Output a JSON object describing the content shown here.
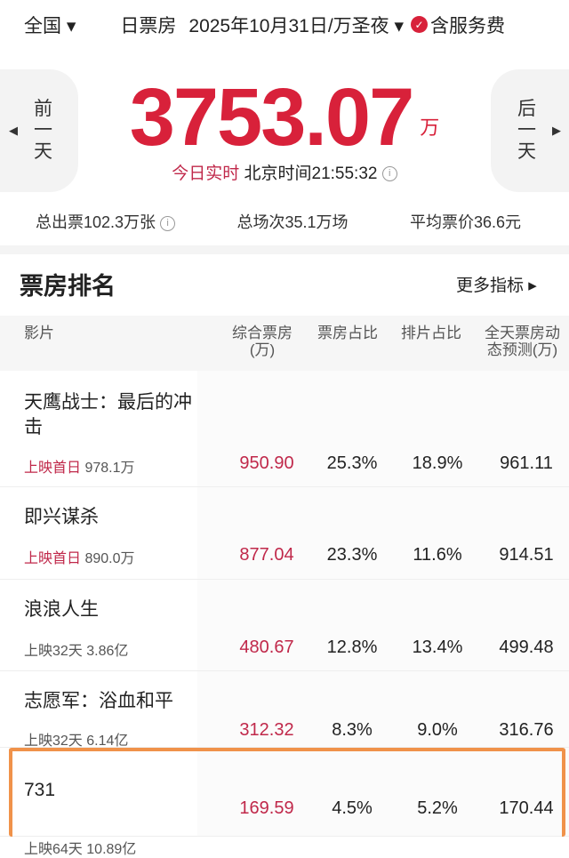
{
  "header": {
    "region": "全国 ▾",
    "title": "日票房",
    "date": "2025年10月31日/万圣夜 ▾",
    "service_fee": "含服务费"
  },
  "nav": {
    "prev": [
      "前",
      "一",
      "天"
    ],
    "next": [
      "后",
      "一",
      "天"
    ]
  },
  "total": {
    "value": "3753.07",
    "unit": "万",
    "realtime_label": "今日实时",
    "time": "北京时间21:55:32"
  },
  "stats": {
    "tickets": "总出票102.3万张",
    "shows": "总场次35.1万场",
    "avg_price": "平均票价36.6元"
  },
  "ranking": {
    "title": "票房排名",
    "more": "更多指标 ▸",
    "columns": [
      "影片",
      "综合票房\n(万)",
      "票房占比",
      "排片占比",
      "全天票房动\n态预测(万)"
    ],
    "rows": [
      {
        "name": "天鹰战士：最后的冲击",
        "tag": "上映首日",
        "total": "978.1万",
        "box": "950.90",
        "box_share": "25.3%",
        "show_share": "18.9%",
        "forecast": "961.11"
      },
      {
        "name": "即兴谋杀",
        "tag": "上映首日",
        "total": "890.0万",
        "box": "877.04",
        "box_share": "23.3%",
        "show_share": "11.6%",
        "forecast": "914.51"
      },
      {
        "name": "浪浪人生",
        "tag": "上映32天",
        "total": "3.86亿",
        "box": "480.67",
        "box_share": "12.8%",
        "show_share": "13.4%",
        "forecast": "499.48"
      },
      {
        "name": "志愿军：浴血和平",
        "tag": "上映32天",
        "total": "6.14亿",
        "box": "312.32",
        "box_share": "8.3%",
        "show_share": "9.0%",
        "forecast": "316.76"
      },
      {
        "name": "731",
        "tag": "上映64天",
        "total": "10.89亿",
        "box": "169.59",
        "box_share": "4.5%",
        "show_share": "5.2%",
        "forecast": "170.44"
      }
    ]
  },
  "colors": {
    "accent": "#d8213a",
    "highlight_border": "#f0924a"
  }
}
